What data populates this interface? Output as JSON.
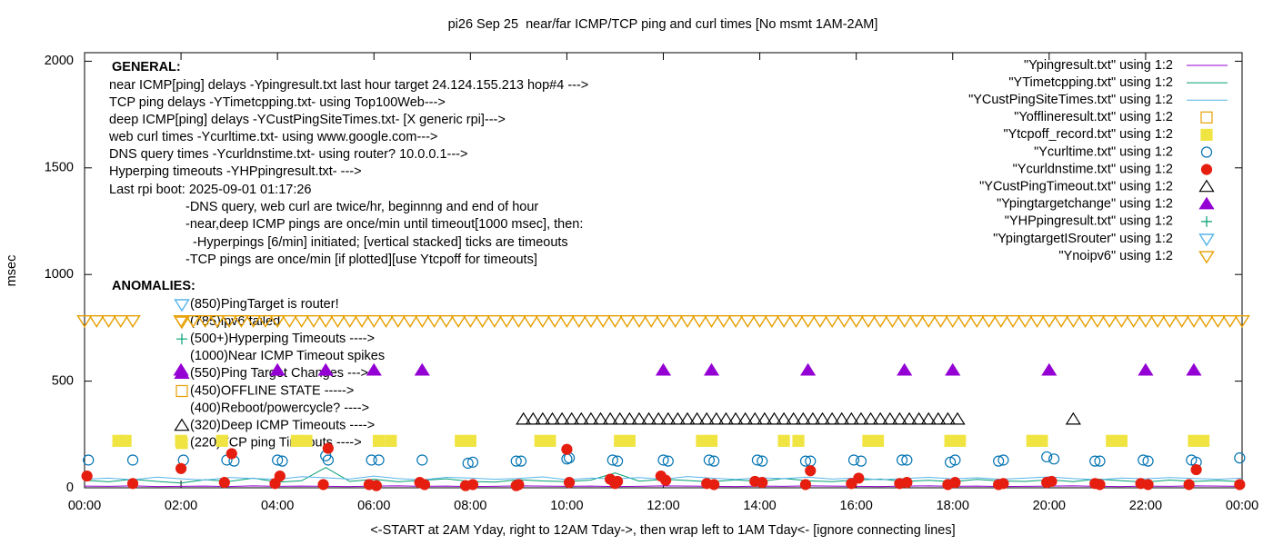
{
  "chart_data": {
    "type": "scatter",
    "title": "pi26 Sep 25  near/far ICMP/TCP ping and curl times [No msmt 1AM-2AM]",
    "x_label": "<-START at 2AM Yday, right to 12AM Tday->, then wrap left to 1AM Tday<- [ignore connecting lines]",
    "y_label": "msec",
    "xlim": [
      0,
      24
    ],
    "ylim": [
      0,
      2040
    ],
    "xticks": [
      {
        "value": 0,
        "label": "00:00"
      },
      {
        "value": 2,
        "label": "02:00"
      },
      {
        "value": 4,
        "label": "04:00"
      },
      {
        "value": 6,
        "label": "06:00"
      },
      {
        "value": 8,
        "label": "08:00"
      },
      {
        "value": 10,
        "label": "10:00"
      },
      {
        "value": 12,
        "label": "12:00"
      },
      {
        "value": 14,
        "label": "14:00"
      },
      {
        "value": 16,
        "label": "16:00"
      },
      {
        "value": 18,
        "label": "18:00"
      },
      {
        "value": 20,
        "label": "20:00"
      },
      {
        "value": 22,
        "label": "22:00"
      },
      {
        "value": 24,
        "label": "00:00"
      }
    ],
    "yticks": [
      0,
      500,
      1000,
      1500,
      2000
    ],
    "legend": "top-right",
    "annotations": [
      "GENERAL:",
      "near ICMP[ping] delays -Ypingresult.txt last hour target 24.124.155.213 hop#4 --->",
      "TCP ping delays -YTimetcpping.txt- using Top100Web--->",
      "deep ICMP[ping] delays -YCustPingSiteTimes.txt- [X generic rpi]--->",
      "web curl times -Ycurltime.txt- using www.google.com--->",
      "DNS query times -Ycurldnstime.txt- using router? 10.0.0.1--->",
      "Hyperping timeouts -YHPpingresult.txt- --->",
      "Last rpi boot: 2025-09-01 01:17:26",
      "-DNS query, web curl are twice/hr, beginnng and end of hour",
      "-near,deep ICMP pings are once/min until timeout[1000 msec], then:",
      "  -Hyperpings [6/min] initiated; [vertical stacked] ticks are timeouts",
      "-TCP pings are once/min [if plotted][use Ytcpoff for timeouts]",
      "ANOMALIES:"
    ],
    "anomalies": [
      "(850)PingTarget is router!",
      "(785)ipv6 failed",
      "(500+)Hyperping Timeouts ---->",
      "(1000)Near ICMP Timeout spikes",
      "(550)Ping Target Changes --->",
      "(450)OFFLINE STATE ----->",
      "(400)Reboot/powercycle? ---->",
      "(320)Deep ICMP Timeouts ---->",
      "(220)TCP ping Timeouts ---->"
    ],
    "series": [
      {
        "name": "\"Ypingresult.txt\" using 1:2",
        "color": "#9400d3",
        "style": "lines",
        "x": [
          0,
          0.5,
          1,
          1.5,
          2,
          2.5,
          3,
          3.5,
          4,
          4.5,
          5,
          5.5,
          6,
          6.5,
          7,
          7.5,
          8,
          8.5,
          9,
          9.5,
          10,
          10.5,
          11,
          11.5,
          12,
          12.5,
          13,
          13.5,
          14,
          14.5,
          15,
          15.5,
          16,
          16.5,
          17,
          17.5,
          18,
          18.5,
          19,
          19.5,
          20,
          20.5,
          21,
          21.5,
          22,
          22.5,
          23,
          23.5,
          24
        ],
        "values": [
          8,
          7,
          9,
          6,
          7,
          8,
          6,
          9,
          7,
          8,
          7,
          6,
          8,
          9,
          7,
          8,
          6,
          7,
          9,
          8,
          7,
          8,
          6,
          7,
          9,
          8,
          7,
          6,
          8,
          7,
          9,
          8,
          7,
          6,
          8,
          9,
          7,
          8,
          6,
          7,
          8,
          9,
          7,
          6,
          8,
          7,
          9,
          8,
          7
        ]
      },
      {
        "name": "\"YTimetcpping.txt\" using 1:2",
        "color": "#009e73",
        "style": "lines",
        "x": [
          0,
          0.5,
          1,
          1.5,
          2,
          2.5,
          3,
          3.5,
          4,
          4.5,
          5,
          5.5,
          6,
          6.5,
          7,
          7.5,
          8,
          8.5,
          9,
          9.5,
          10,
          10.5,
          11,
          11.5,
          12,
          12.5,
          13,
          13.5,
          14,
          14.5,
          15,
          15.5,
          16,
          16.5,
          17,
          17.5,
          18,
          18.5,
          19,
          19.5,
          20,
          20.5,
          21,
          21.5,
          22,
          22.5,
          23,
          23.5,
          24
        ],
        "values": [
          35,
          28,
          40,
          30,
          22,
          38,
          30,
          45,
          26,
          33,
          95,
          30,
          40,
          28,
          35,
          42,
          30,
          27,
          38,
          32,
          29,
          36,
          70,
          31,
          40,
          34,
          28,
          37,
          30,
          44,
          33,
          29,
          36,
          41,
          30,
          35,
          28,
          39,
          32,
          30,
          37,
          29,
          41,
          33,
          27,
          36,
          30,
          34,
          28
        ]
      },
      {
        "name": "\"YCustPingSiteTimes.txt\" using 1:2",
        "color": "#56b4e9",
        "style": "lines",
        "x": [
          0,
          0.5,
          1,
          1.5,
          2,
          2.5,
          3,
          3.5,
          4,
          4.5,
          5,
          5.5,
          6,
          6.5,
          7,
          7.5,
          8,
          8.5,
          9,
          9.5,
          10,
          10.5,
          11,
          11.5,
          12,
          12.5,
          13,
          13.5,
          14,
          14.5,
          15,
          15.5,
          16,
          16.5,
          17,
          17.5,
          18,
          18.5,
          19,
          19.5,
          20,
          20.5,
          21,
          21.5,
          22,
          22.5,
          23,
          23.5,
          24
        ],
        "values": [
          40,
          45,
          38,
          50,
          42,
          36,
          48,
          44,
          39,
          52,
          47,
          41,
          55,
          43,
          37,
          49,
          46,
          40,
          44,
          51,
          38,
          45,
          42,
          48,
          40,
          53,
          45,
          39,
          47,
          43,
          50,
          41,
          46,
          38,
          44,
          49,
          42,
          47,
          40,
          45,
          51,
          43,
          38,
          46,
          42,
          48,
          44,
          40,
          45
        ]
      },
      {
        "name": "\"Yofflineresult.txt\" using 1:2",
        "color": "#e69f00",
        "style": "points",
        "marker": "open-square",
        "x": [],
        "values": []
      },
      {
        "name": "\"Ytcpoff_record.txt\" using 1:2",
        "color": "#f0e442",
        "style": "points",
        "marker": "filled-square",
        "x": [
          0.7,
          0.85,
          2.0,
          2.85,
          4.4,
          4.6,
          6.1,
          6.35,
          7.8,
          8.0,
          9.45,
          9.65,
          11.1,
          11.3,
          12.8,
          13.0,
          14.5,
          14.8,
          16.25,
          16.45,
          17.95,
          18.15,
          19.65,
          19.85,
          21.3,
          21.5,
          23.0,
          23.2
        ],
        "values": [
          220,
          220,
          220,
          220,
          220,
          220,
          220,
          220,
          220,
          220,
          220,
          220,
          220,
          220,
          220,
          220,
          220,
          220,
          220,
          220,
          220,
          220,
          220,
          220,
          220,
          220,
          220,
          220
        ]
      },
      {
        "name": "\"Ycurltime.txt\" using 1:2",
        "color": "#0072b2",
        "style": "points",
        "marker": "open-circle",
        "x": [
          0.08,
          1.0,
          2.05,
          2.95,
          3.1,
          4.0,
          4.1,
          5.0,
          5.05,
          5.95,
          6.1,
          7.0,
          7.95,
          8.05,
          8.95,
          9.05,
          10.0,
          10.05,
          10.95,
          11.05,
          12.0,
          12.1,
          12.95,
          13.05,
          13.95,
          14.05,
          14.95,
          15.05,
          15.95,
          16.1,
          16.95,
          17.05,
          17.95,
          18.05,
          18.95,
          19.05,
          19.95,
          20.1,
          20.95,
          21.05,
          21.95,
          22.05,
          22.95,
          23.05,
          23.95
        ],
        "values": [
          130,
          130,
          130,
          130,
          125,
          130,
          125,
          150,
          130,
          130,
          130,
          130,
          115,
          120,
          125,
          125,
          135,
          140,
          130,
          125,
          130,
          125,
          130,
          125,
          130,
          125,
          125,
          125,
          130,
          125,
          130,
          130,
          120,
          130,
          125,
          130,
          145,
          135,
          125,
          125,
          130,
          125,
          130,
          120,
          140
        ]
      },
      {
        "name": "\"Ycurldnstime.txt\" using 1:2",
        "color": "#e51e10",
        "style": "points",
        "marker": "filled-circle",
        "x": [
          0.05,
          1.0,
          2.0,
          2.9,
          3.05,
          3.95,
          4.05,
          4.95,
          5.05,
          5.9,
          6.05,
          6.95,
          7.05,
          7.9,
          8.05,
          8.95,
          9.0,
          10.0,
          10.05,
          10.9,
          11.0,
          11.05,
          11.95,
          12.05,
          12.9,
          13.05,
          13.9,
          14.05,
          14.95,
          15.05,
          15.9,
          16.05,
          16.9,
          17.05,
          17.9,
          18.05,
          18.95,
          19.05,
          19.95,
          20.05,
          20.95,
          21.05,
          21.9,
          22.05,
          22.9,
          23.05,
          23.95
        ],
        "values": [
          55,
          20,
          90,
          25,
          160,
          20,
          55,
          15,
          185,
          15,
          10,
          25,
          15,
          10,
          15,
          10,
          15,
          180,
          25,
          40,
          20,
          30,
          55,
          35,
          20,
          15,
          30,
          25,
          15,
          80,
          20,
          45,
          20,
          25,
          15,
          25,
          15,
          20,
          25,
          30,
          20,
          15,
          20,
          15,
          15,
          85,
          15
        ]
      },
      {
        "name": "\"YCustPingTimeout.txt\" using 1:2",
        "color": "#000000",
        "style": "points",
        "marker": "open-triangle",
        "x": [
          9.1,
          9.3,
          9.5,
          9.7,
          9.9,
          10.1,
          10.3,
          10.5,
          10.7,
          10.9,
          11.1,
          11.3,
          11.5,
          11.7,
          11.9,
          12.1,
          12.3,
          12.5,
          12.7,
          12.9,
          13.1,
          13.3,
          13.5,
          13.7,
          13.9,
          14.1,
          14.3,
          14.5,
          14.7,
          14.9,
          15.1,
          15.3,
          15.5,
          15.7,
          15.9,
          16.1,
          16.3,
          16.5,
          16.7,
          16.9,
          17.1,
          17.3,
          17.5,
          17.7,
          17.9,
          18.1,
          20.5
        ],
        "values": [
          320,
          320,
          320,
          320,
          320,
          320,
          320,
          320,
          320,
          320,
          320,
          320,
          320,
          320,
          320,
          320,
          320,
          320,
          320,
          320,
          320,
          320,
          320,
          320,
          320,
          320,
          320,
          320,
          320,
          320,
          320,
          320,
          320,
          320,
          320,
          320,
          320,
          320,
          320,
          320,
          320,
          320,
          320,
          320,
          320,
          320,
          320
        ]
      },
      {
        "name": "\"Ypingtargetchange\" using 1:2",
        "color": "#9400d3",
        "style": "points",
        "marker": "filled-triangle",
        "x": [
          2,
          4,
          5,
          6,
          7,
          12,
          13,
          15,
          17,
          18,
          20,
          22,
          23
        ],
        "values": [
          550,
          550,
          550,
          550,
          550,
          550,
          550,
          550,
          550,
          550,
          550,
          550,
          550
        ]
      },
      {
        "name": "\"YHPpingresult.txt\" using 1:2",
        "color": "#009e73",
        "style": "points",
        "marker": "plus",
        "x": [],
        "values": []
      },
      {
        "name": "\"YpingtargetISrouter\" using 1:2",
        "color": "#56b4e9",
        "style": "points",
        "marker": "open-down-triangle",
        "x": [],
        "values": []
      },
      {
        "name": "\"Ynoipv6\" using 1:2",
        "color": "#e69f00",
        "style": "points",
        "marker": "open-down-triangle",
        "x": [
          0,
          0.25,
          0.5,
          0.75,
          1,
          2,
          2.25,
          2.5,
          2.75,
          3,
          3.25,
          3.5,
          3.75,
          4,
          4.25,
          4.5,
          4.75,
          5,
          5.25,
          5.5,
          5.75,
          6,
          6.25,
          6.5,
          6.75,
          7,
          7.25,
          7.5,
          7.75,
          8,
          8.25,
          8.5,
          8.75,
          9,
          9.25,
          9.5,
          9.75,
          10,
          10.25,
          10.5,
          10.75,
          11,
          11.25,
          11.5,
          11.75,
          12,
          12.25,
          12.5,
          12.75,
          13,
          13.25,
          13.5,
          13.75,
          14,
          14.25,
          14.5,
          14.75,
          15,
          15.25,
          15.5,
          15.75,
          16,
          16.25,
          16.5,
          16.75,
          17,
          17.25,
          17.5,
          17.75,
          18,
          18.25,
          18.5,
          18.75,
          19,
          19.25,
          19.5,
          19.75,
          20,
          20.25,
          20.5,
          20.75,
          21,
          21.25,
          21.5,
          21.75,
          22,
          22.25,
          22.5,
          22.75,
          23,
          23.25,
          23.5,
          23.75,
          24
        ],
        "values": [
          785,
          785,
          785,
          785,
          785,
          785,
          785,
          785,
          785,
          785,
          785,
          785,
          785,
          785,
          785,
          785,
          785,
          785,
          785,
          785,
          785,
          785,
          785,
          785,
          785,
          785,
          785,
          785,
          785,
          785,
          785,
          785,
          785,
          785,
          785,
          785,
          785,
          785,
          785,
          785,
          785,
          785,
          785,
          785,
          785,
          785,
          785,
          785,
          785,
          785,
          785,
          785,
          785,
          785,
          785,
          785,
          785,
          785,
          785,
          785,
          785,
          785,
          785,
          785,
          785,
          785,
          785,
          785,
          785,
          785,
          785,
          785,
          785,
          785,
          785,
          785,
          785,
          785,
          785,
          785,
          785,
          785,
          785,
          785,
          785,
          785,
          785,
          785,
          785,
          785,
          785,
          785,
          785,
          785
        ]
      }
    ]
  }
}
